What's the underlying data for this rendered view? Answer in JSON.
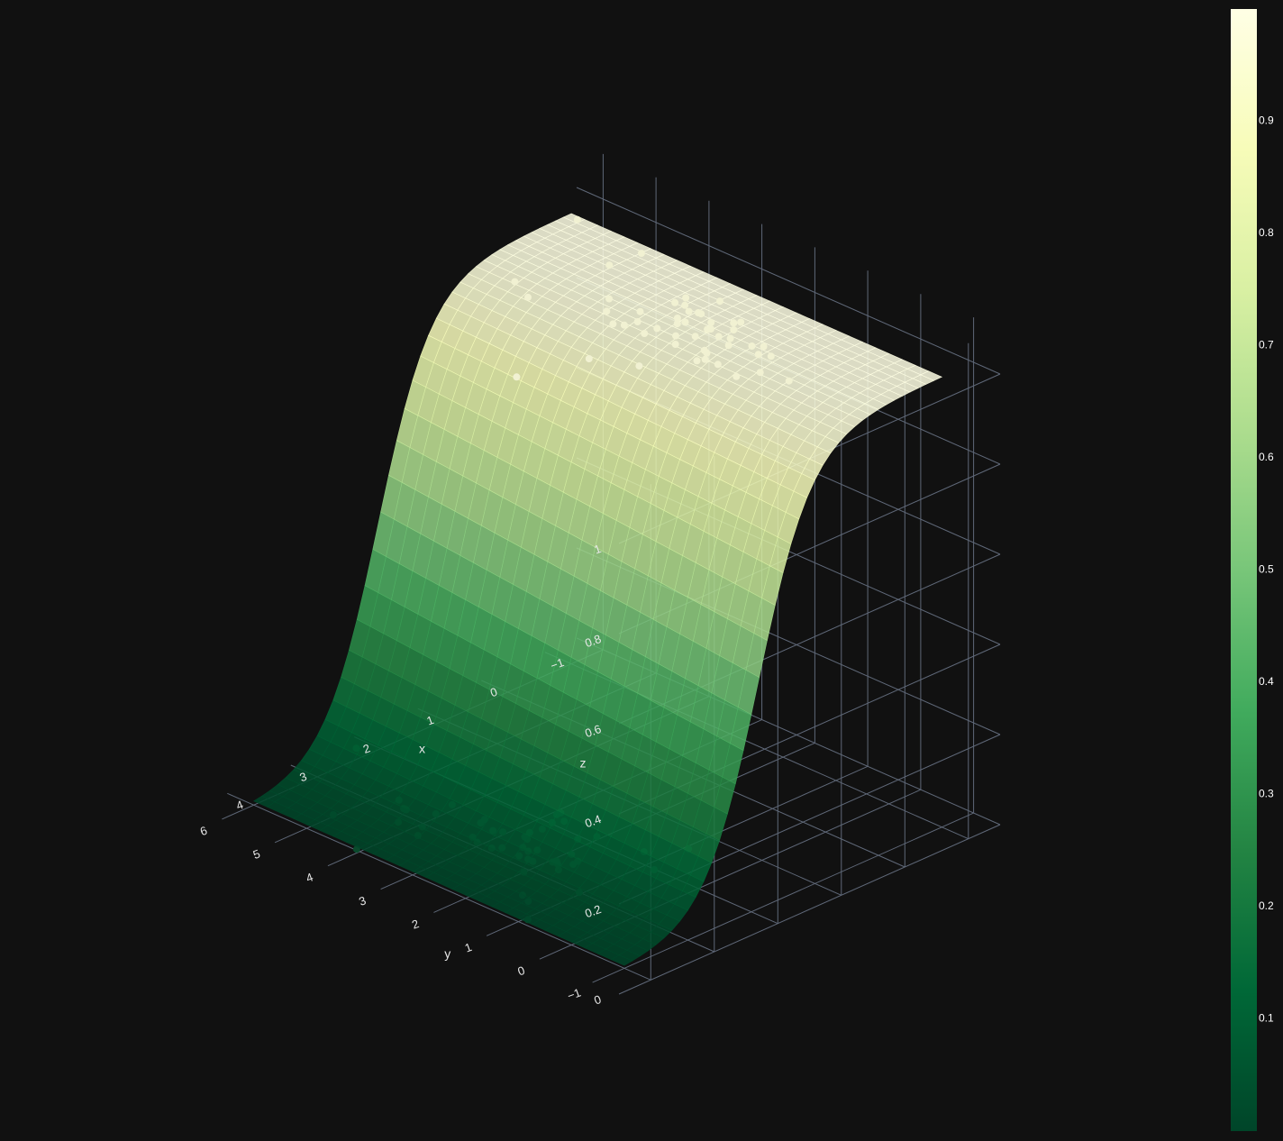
{
  "chart_data": {
    "type": "surface3d",
    "title": "",
    "surface": {
      "description_of_values": "z = 1 / (1 + exp(-(a + b*x + c*y)))",
      "x_range": [
        -1,
        4
      ],
      "y_range": [
        -1,
        6
      ],
      "colorscale": "YlGn reversed",
      "opacity": 0.85
    },
    "scatter_points": {
      "class_1_z": 1,
      "class_0_z": 0,
      "count_each": 50
    },
    "axes": {
      "x": {
        "label": "x",
        "range": [
          -1.5,
          4.5
        ],
        "ticks": [
          -1,
          0,
          1,
          2,
          3,
          4
        ],
        "tick_labels": [
          "−1",
          "0",
          "1",
          "2",
          "3",
          "4"
        ]
      },
      "y": {
        "label": "y",
        "range": [
          -1.5,
          6.5
        ],
        "ticks": [
          -1,
          0,
          1,
          2,
          3,
          4,
          5,
          6
        ],
        "tick_labels": [
          "−1",
          "0",
          "1",
          "2",
          "3",
          "4",
          "5",
          "6"
        ]
      },
      "z": {
        "label": "z",
        "range": [
          0,
          1.1
        ],
        "ticks": [
          0,
          0.2,
          0.4,
          0.6,
          0.8,
          1
        ],
        "tick_labels": [
          "0",
          "0.2",
          "0.4",
          "0.6",
          "0.8",
          "1"
        ]
      }
    },
    "colorbar": {
      "range": [
        0,
        1
      ],
      "ticks": [
        0.1,
        0.2,
        0.3,
        0.4,
        0.5,
        0.6,
        0.7,
        0.8,
        0.9
      ],
      "tick_labels": [
        "0.1",
        "0.2",
        "0.3",
        "0.4",
        "0.5",
        "0.6",
        "0.7",
        "0.8",
        "0.9"
      ]
    },
    "colors": {
      "background": "#111111",
      "grid": "#5f6878",
      "class_1_marker": "#f1f1d2",
      "class_0_marker": "#0a4a2c"
    }
  }
}
